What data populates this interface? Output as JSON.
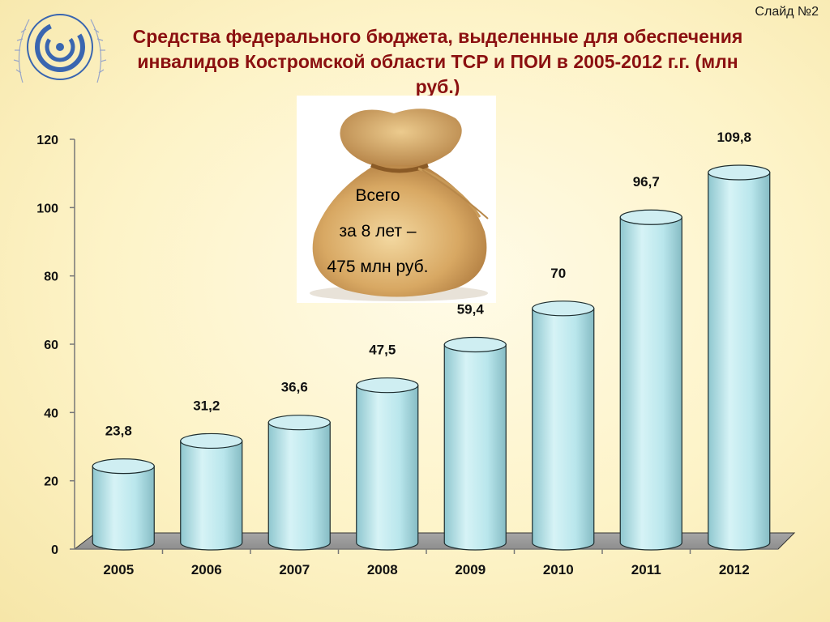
{
  "slide_label": "Слайд №2",
  "title": "Средства федерального бюджета, выделенные для обеспечения инвалидов Костромской области ТСР и ПОИ в 2005-2012 г.г. (млн руб.)",
  "callout": {
    "line1": "Всего",
    "line2": "за 8 лет –",
    "line3": "475 млн руб."
  },
  "colors": {
    "title": "#8b1010",
    "bar_fill": "#b9e6ec",
    "bar_top": "#cfeef2",
    "floor": "#8e8e8e"
  },
  "chart_data": {
    "type": "bar",
    "style": "3d-cylinder",
    "categories": [
      "2005",
      "2006",
      "2007",
      "2008",
      "2009",
      "2010",
      "2011",
      "2012"
    ],
    "values": [
      23.8,
      31.2,
      36.6,
      47.5,
      59.4,
      70,
      96.7,
      109.8
    ],
    "value_labels": [
      "23,8",
      "31,2",
      "36,6",
      "47,5",
      "59,4",
      "70",
      "96,7",
      "109,8"
    ],
    "ylim": [
      0,
      120
    ],
    "yticks": [
      0,
      20,
      40,
      60,
      80,
      100,
      120
    ],
    "grid": false,
    "legend": "none"
  }
}
